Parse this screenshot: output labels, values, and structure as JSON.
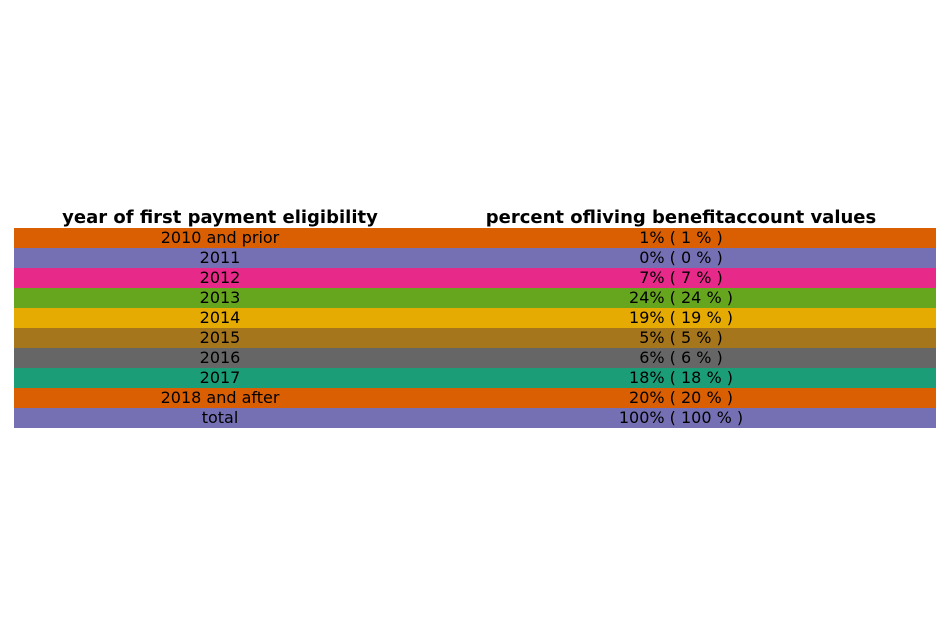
{
  "chart_data": {
    "type": "table",
    "columns": [
      "year of first payment eligibility",
      "percent ofliving benefitaccount values"
    ],
    "rows": [
      {
        "year": "2010 and prior",
        "value": "1% ( 1 % )",
        "color": "#d95f02"
      },
      {
        "year": "2011",
        "value": "0% ( 0 % )",
        "color": "#7570b3"
      },
      {
        "year": "2012",
        "value": "7% ( 7 % )",
        "color": "#e7298a"
      },
      {
        "year": "2013",
        "value": "24% ( 24 % )",
        "color": "#66a61e"
      },
      {
        "year": "2014",
        "value": "19% ( 19 % )",
        "color": "#e6ab02"
      },
      {
        "year": "2015",
        "value": "5% ( 5 % )",
        "color": "#a6761d"
      },
      {
        "year": "2016",
        "value": "6% ( 6 % )",
        "color": "#666666"
      },
      {
        "year": "2017",
        "value": "18% ( 18 % )",
        "color": "#1b9e77"
      },
      {
        "year": "2018 and after",
        "value": "20% ( 20 % )",
        "color": "#d95f02"
      },
      {
        "year": "total",
        "value": "100% ( 100 % )",
        "color": "#7570b3"
      }
    ]
  }
}
